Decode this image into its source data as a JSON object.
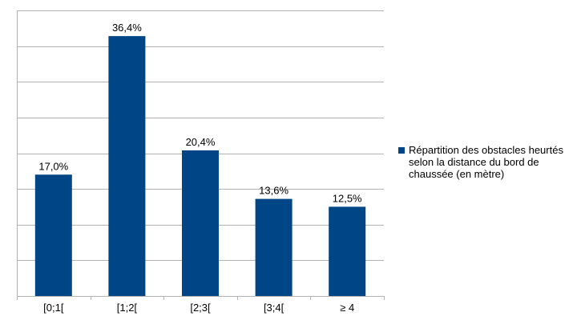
{
  "colors": {
    "series": "#004586",
    "grid": "#b3b3b3",
    "axis": "#b3b3b3"
  },
  "chart_data": {
    "type": "bar",
    "categories": [
      "[0;1[",
      "[1;2[",
      "[2;3[",
      "[3;4[",
      "≥ 4"
    ],
    "series": [
      {
        "name": "Répartition des obstacles heurtés selon la distance du bord de chaussée (en mètre)",
        "values": [
          17.0,
          36.4,
          20.4,
          13.6,
          12.5
        ],
        "data_labels": [
          "17,0%",
          "36,4%",
          "20,4%",
          "13,6%",
          "12,5%"
        ]
      }
    ],
    "title": "",
    "xlabel": "",
    "ylabel": "",
    "ylim": [
      0,
      40
    ],
    "y_gridlines": 8,
    "grid": true,
    "y_tick_labels_shown": false,
    "legend_position": "right"
  }
}
